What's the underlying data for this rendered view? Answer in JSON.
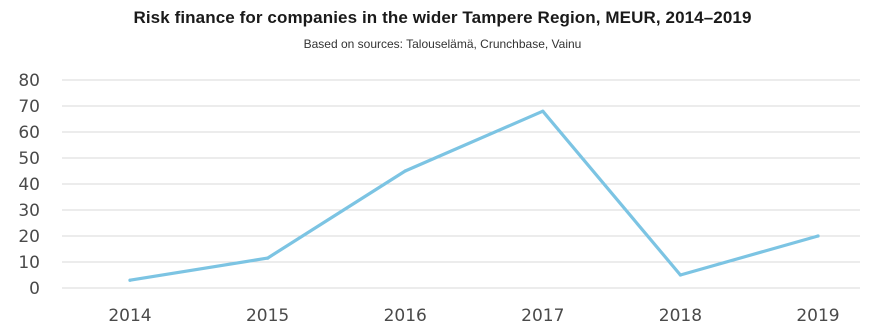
{
  "chart_data": {
    "type": "line",
    "title": "Risk finance for companies in the wider Tampere Region, MEUR, 2014–2019",
    "subtitle": "Based on sources: Talouselämä, Crunchbase, Vainu",
    "categories": [
      "2014",
      "2015",
      "2016",
      "2017",
      "2018",
      "2019"
    ],
    "series": [
      {
        "values": [
          3,
          11.5,
          45,
          68,
          5,
          20
        ],
        "color": "#7cc4e3"
      }
    ],
    "yticks": [
      "0",
      "10",
      "20",
      "30",
      "40",
      "50",
      "60",
      "70",
      "80"
    ],
    "ylim": [
      0,
      80
    ],
    "grid": true,
    "legend": "none",
    "colors": {
      "line": "#7cc4e3",
      "grid": "#d9d9d9",
      "axis_text": "#4a4a4a"
    }
  }
}
